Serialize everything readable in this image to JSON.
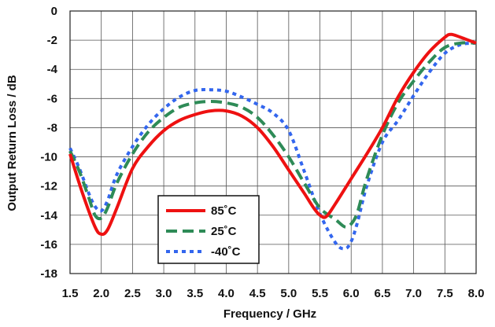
{
  "chart_data": {
    "type": "line",
    "xlabel": "Frequency / GHz",
    "ylabel": "Output Return Loss / dB",
    "xlim": [
      1.5,
      8.0
    ],
    "ylim": [
      -18,
      0
    ],
    "x_ticks": [
      "1.5",
      "2.0",
      "2.5",
      "3.0",
      "3.5",
      "4.0",
      "4.5",
      "5.0",
      "5.5",
      "6.0",
      "6.5",
      "7.0",
      "7.5",
      "8.0"
    ],
    "y_ticks": [
      "0",
      "-2",
      "-4",
      "-6",
      "-8",
      "-10",
      "-12",
      "-14",
      "-16",
      "-18"
    ],
    "grid": true,
    "legend_position": "bottom-left",
    "series": [
      {
        "name": "85˚C",
        "color": "#ee1111",
        "dash": "solid",
        "points": [
          [
            1.5,
            -9.8
          ],
          [
            1.7,
            -12.5
          ],
          [
            1.9,
            -14.8
          ],
          [
            2.0,
            -15.3
          ],
          [
            2.1,
            -15.0
          ],
          [
            2.25,
            -13.5
          ],
          [
            2.5,
            -10.8
          ],
          [
            2.75,
            -9.3
          ],
          [
            3.0,
            -8.2
          ],
          [
            3.25,
            -7.5
          ],
          [
            3.5,
            -7.1
          ],
          [
            3.75,
            -6.85
          ],
          [
            4.0,
            -6.85
          ],
          [
            4.25,
            -7.2
          ],
          [
            4.5,
            -8.0
          ],
          [
            4.75,
            -9.3
          ],
          [
            5.0,
            -10.9
          ],
          [
            5.25,
            -12.5
          ],
          [
            5.4,
            -13.5
          ],
          [
            5.5,
            -14.0
          ],
          [
            5.6,
            -14.1
          ],
          [
            5.75,
            -13.2
          ],
          [
            6.0,
            -11.5
          ],
          [
            6.25,
            -9.8
          ],
          [
            6.5,
            -8.0
          ],
          [
            6.75,
            -5.9
          ],
          [
            7.0,
            -4.2
          ],
          [
            7.25,
            -2.8
          ],
          [
            7.5,
            -1.8
          ],
          [
            7.6,
            -1.6
          ],
          [
            7.75,
            -1.8
          ],
          [
            8.0,
            -2.2
          ]
        ]
      },
      {
        "name": "25˚C",
        "color": "#2e8b57",
        "dash": "long-dash",
        "points": [
          [
            1.5,
            -9.6
          ],
          [
            1.65,
            -11.0
          ],
          [
            1.8,
            -12.8
          ],
          [
            1.9,
            -14.0
          ],
          [
            2.0,
            -14.2
          ],
          [
            2.1,
            -13.5
          ],
          [
            2.25,
            -11.8
          ],
          [
            2.5,
            -9.8
          ],
          [
            2.75,
            -8.3
          ],
          [
            3.0,
            -7.3
          ],
          [
            3.25,
            -6.6
          ],
          [
            3.5,
            -6.3
          ],
          [
            3.75,
            -6.2
          ],
          [
            4.0,
            -6.3
          ],
          [
            4.25,
            -6.6
          ],
          [
            4.5,
            -7.3
          ],
          [
            4.75,
            -8.5
          ],
          [
            5.0,
            -10.0
          ],
          [
            5.25,
            -11.8
          ],
          [
            5.5,
            -13.5
          ],
          [
            5.75,
            -14.3
          ],
          [
            5.9,
            -14.8
          ],
          [
            6.0,
            -14.6
          ],
          [
            6.1,
            -13.8
          ],
          [
            6.25,
            -11.5
          ],
          [
            6.5,
            -8.5
          ],
          [
            6.75,
            -6.3
          ],
          [
            7.0,
            -4.8
          ],
          [
            7.25,
            -3.5
          ],
          [
            7.5,
            -2.5
          ],
          [
            7.75,
            -2.2
          ],
          [
            8.0,
            -2.2
          ]
        ]
      },
      {
        "name": "-40˚C",
        "color": "#3366ee",
        "dash": "short-dash",
        "points": [
          [
            1.5,
            -9.4
          ],
          [
            1.65,
            -10.8
          ],
          [
            1.8,
            -12.5
          ],
          [
            1.9,
            -13.4
          ],
          [
            2.0,
            -13.7
          ],
          [
            2.1,
            -13.0
          ],
          [
            2.25,
            -11.2
          ],
          [
            2.5,
            -9.3
          ],
          [
            2.75,
            -7.8
          ],
          [
            3.0,
            -6.7
          ],
          [
            3.25,
            -5.9
          ],
          [
            3.5,
            -5.45
          ],
          [
            3.75,
            -5.4
          ],
          [
            4.0,
            -5.5
          ],
          [
            4.25,
            -5.9
          ],
          [
            4.5,
            -6.4
          ],
          [
            4.75,
            -7.0
          ],
          [
            5.0,
            -8.2
          ],
          [
            5.25,
            -11.0
          ],
          [
            5.5,
            -13.9
          ],
          [
            5.75,
            -15.9
          ],
          [
            5.9,
            -16.3
          ],
          [
            6.0,
            -15.8
          ],
          [
            6.1,
            -14.5
          ],
          [
            6.25,
            -12.0
          ],
          [
            6.5,
            -9.0
          ],
          [
            6.75,
            -7.5
          ],
          [
            7.0,
            -5.8
          ],
          [
            7.25,
            -4.2
          ],
          [
            7.5,
            -2.9
          ],
          [
            7.75,
            -2.3
          ],
          [
            8.0,
            -2.2
          ]
        ]
      }
    ]
  }
}
